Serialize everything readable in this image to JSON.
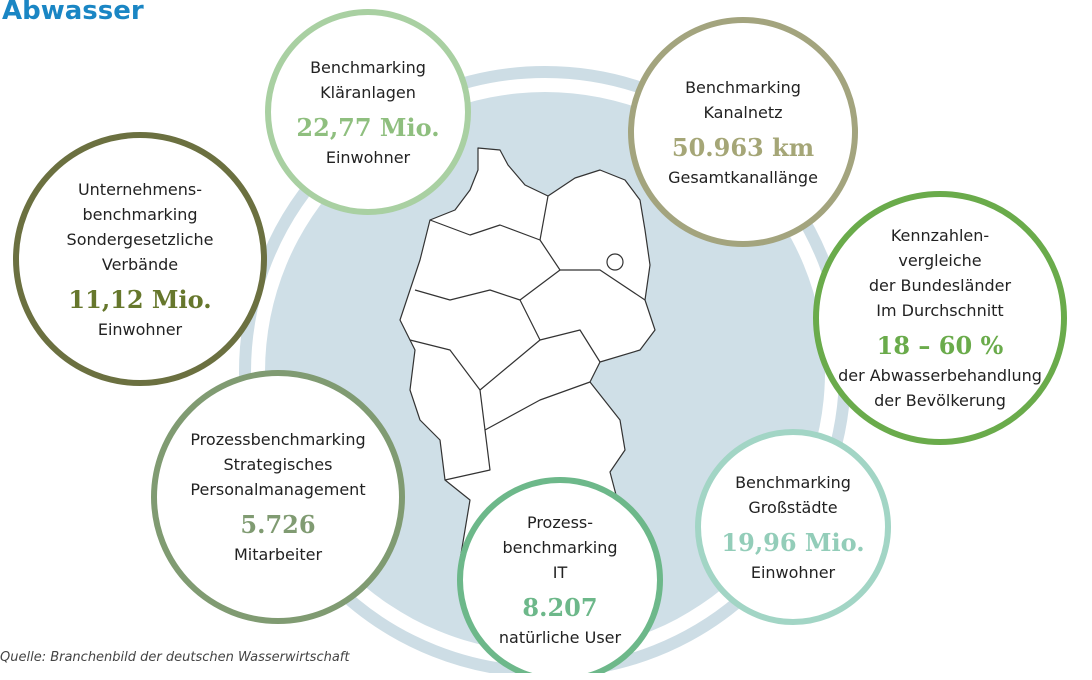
{
  "header": {
    "title": "Abwasser"
  },
  "nodes": [
    {
      "lines": [
        "Benchmarking",
        "Kläranlagen"
      ],
      "value": "22,77 Mio.",
      "unit": [
        "Einwohner"
      ]
    },
    {
      "lines": [
        "Benchmarking",
        "Kanalnetz"
      ],
      "value": "50.963 km",
      "unit": [
        "Gesamtkanallänge"
      ]
    },
    {
      "lines": [
        "Unternehmens-",
        "benchmarking",
        "Sondergesetzliche",
        "Verbände"
      ],
      "value": "11,12 Mio.",
      "unit": [
        "Einwohner"
      ]
    },
    {
      "lines": [
        "Kennzahlen-",
        "vergleiche",
        "der Bundesländer",
        "Im Durchschnitt"
      ],
      "value": "18 – 60 %",
      "unit": [
        "der Abwasserbehandlung",
        "der Bevölkerung"
      ]
    },
    {
      "lines": [
        "Prozessbenchmarking",
        "Strategisches",
        "Personalmanagement"
      ],
      "value": "5.726",
      "unit": [
        "Mitarbeiter"
      ]
    },
    {
      "lines": [
        "Prozess-",
        "benchmarking",
        "IT"
      ],
      "value": "8.207",
      "unit": [
        "natürliche User"
      ]
    },
    {
      "lines": [
        "Benchmarking",
        "Großstädte"
      ],
      "value": "19,96 Mio.",
      "unit": [
        "Einwohner"
      ]
    }
  ],
  "footer": {
    "source": "Quelle: Branchenbild der deutschen Wasserwirtschaft"
  }
}
